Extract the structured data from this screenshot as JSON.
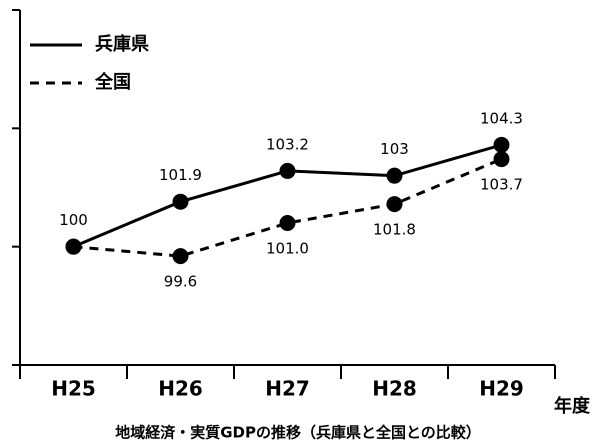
{
  "chart_data": {
    "type": "line",
    "title": "地域経済・実質GDPの推移（兵庫県と全国との比較）",
    "x_label": "年度",
    "categories": [
      "H25",
      "H26",
      "H27",
      "H28",
      "H29"
    ],
    "series": [
      {
        "name": "兵庫県",
        "color": "#000000",
        "dash": false,
        "values": [
          100,
          101.9,
          103.2,
          103,
          104.3
        ]
      },
      {
        "name": "全国",
        "color": "#000000",
        "dash": true,
        "values": [
          100,
          99.6,
          101.0,
          101.8,
          103.7
        ],
        "value_labels": [
          null,
          "99.6",
          "101.0",
          "101.8",
          "103.7"
        ]
      }
    ],
    "ylim": [
      95,
      110
    ],
    "yticks": [
      95,
      100,
      105,
      110
    ],
    "legend": "top-left"
  }
}
